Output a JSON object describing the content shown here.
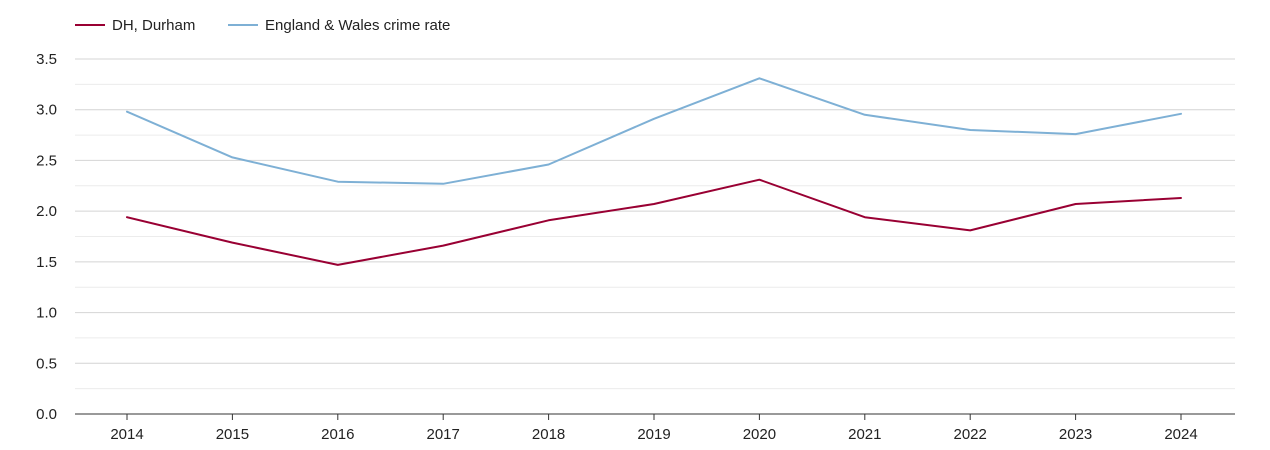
{
  "chart_data": {
    "type": "line",
    "title": "",
    "xlabel": "",
    "ylabel": "",
    "categories": [
      "2014",
      "2015",
      "2016",
      "2017",
      "2018",
      "2019",
      "2020",
      "2021",
      "2022",
      "2023",
      "2024"
    ],
    "y_ticks": [
      "0.0",
      "0.5",
      "1.0",
      "1.5",
      "2.0",
      "2.5",
      "3.0",
      "3.5"
    ],
    "ylim": [
      0,
      3.5
    ],
    "grid": true,
    "legend_position": "top-left",
    "series": [
      {
        "name": "DH, Durham",
        "color": "#990033",
        "values": [
          1.94,
          1.69,
          1.47,
          1.66,
          1.91,
          2.07,
          2.31,
          1.94,
          1.81,
          2.07,
          2.13
        ]
      },
      {
        "name": "England & Wales crime rate",
        "color": "#7eb0d5",
        "values": [
          2.98,
          2.53,
          2.29,
          2.27,
          2.46,
          2.91,
          3.31,
          2.95,
          2.8,
          2.76,
          2.96
        ]
      }
    ]
  }
}
